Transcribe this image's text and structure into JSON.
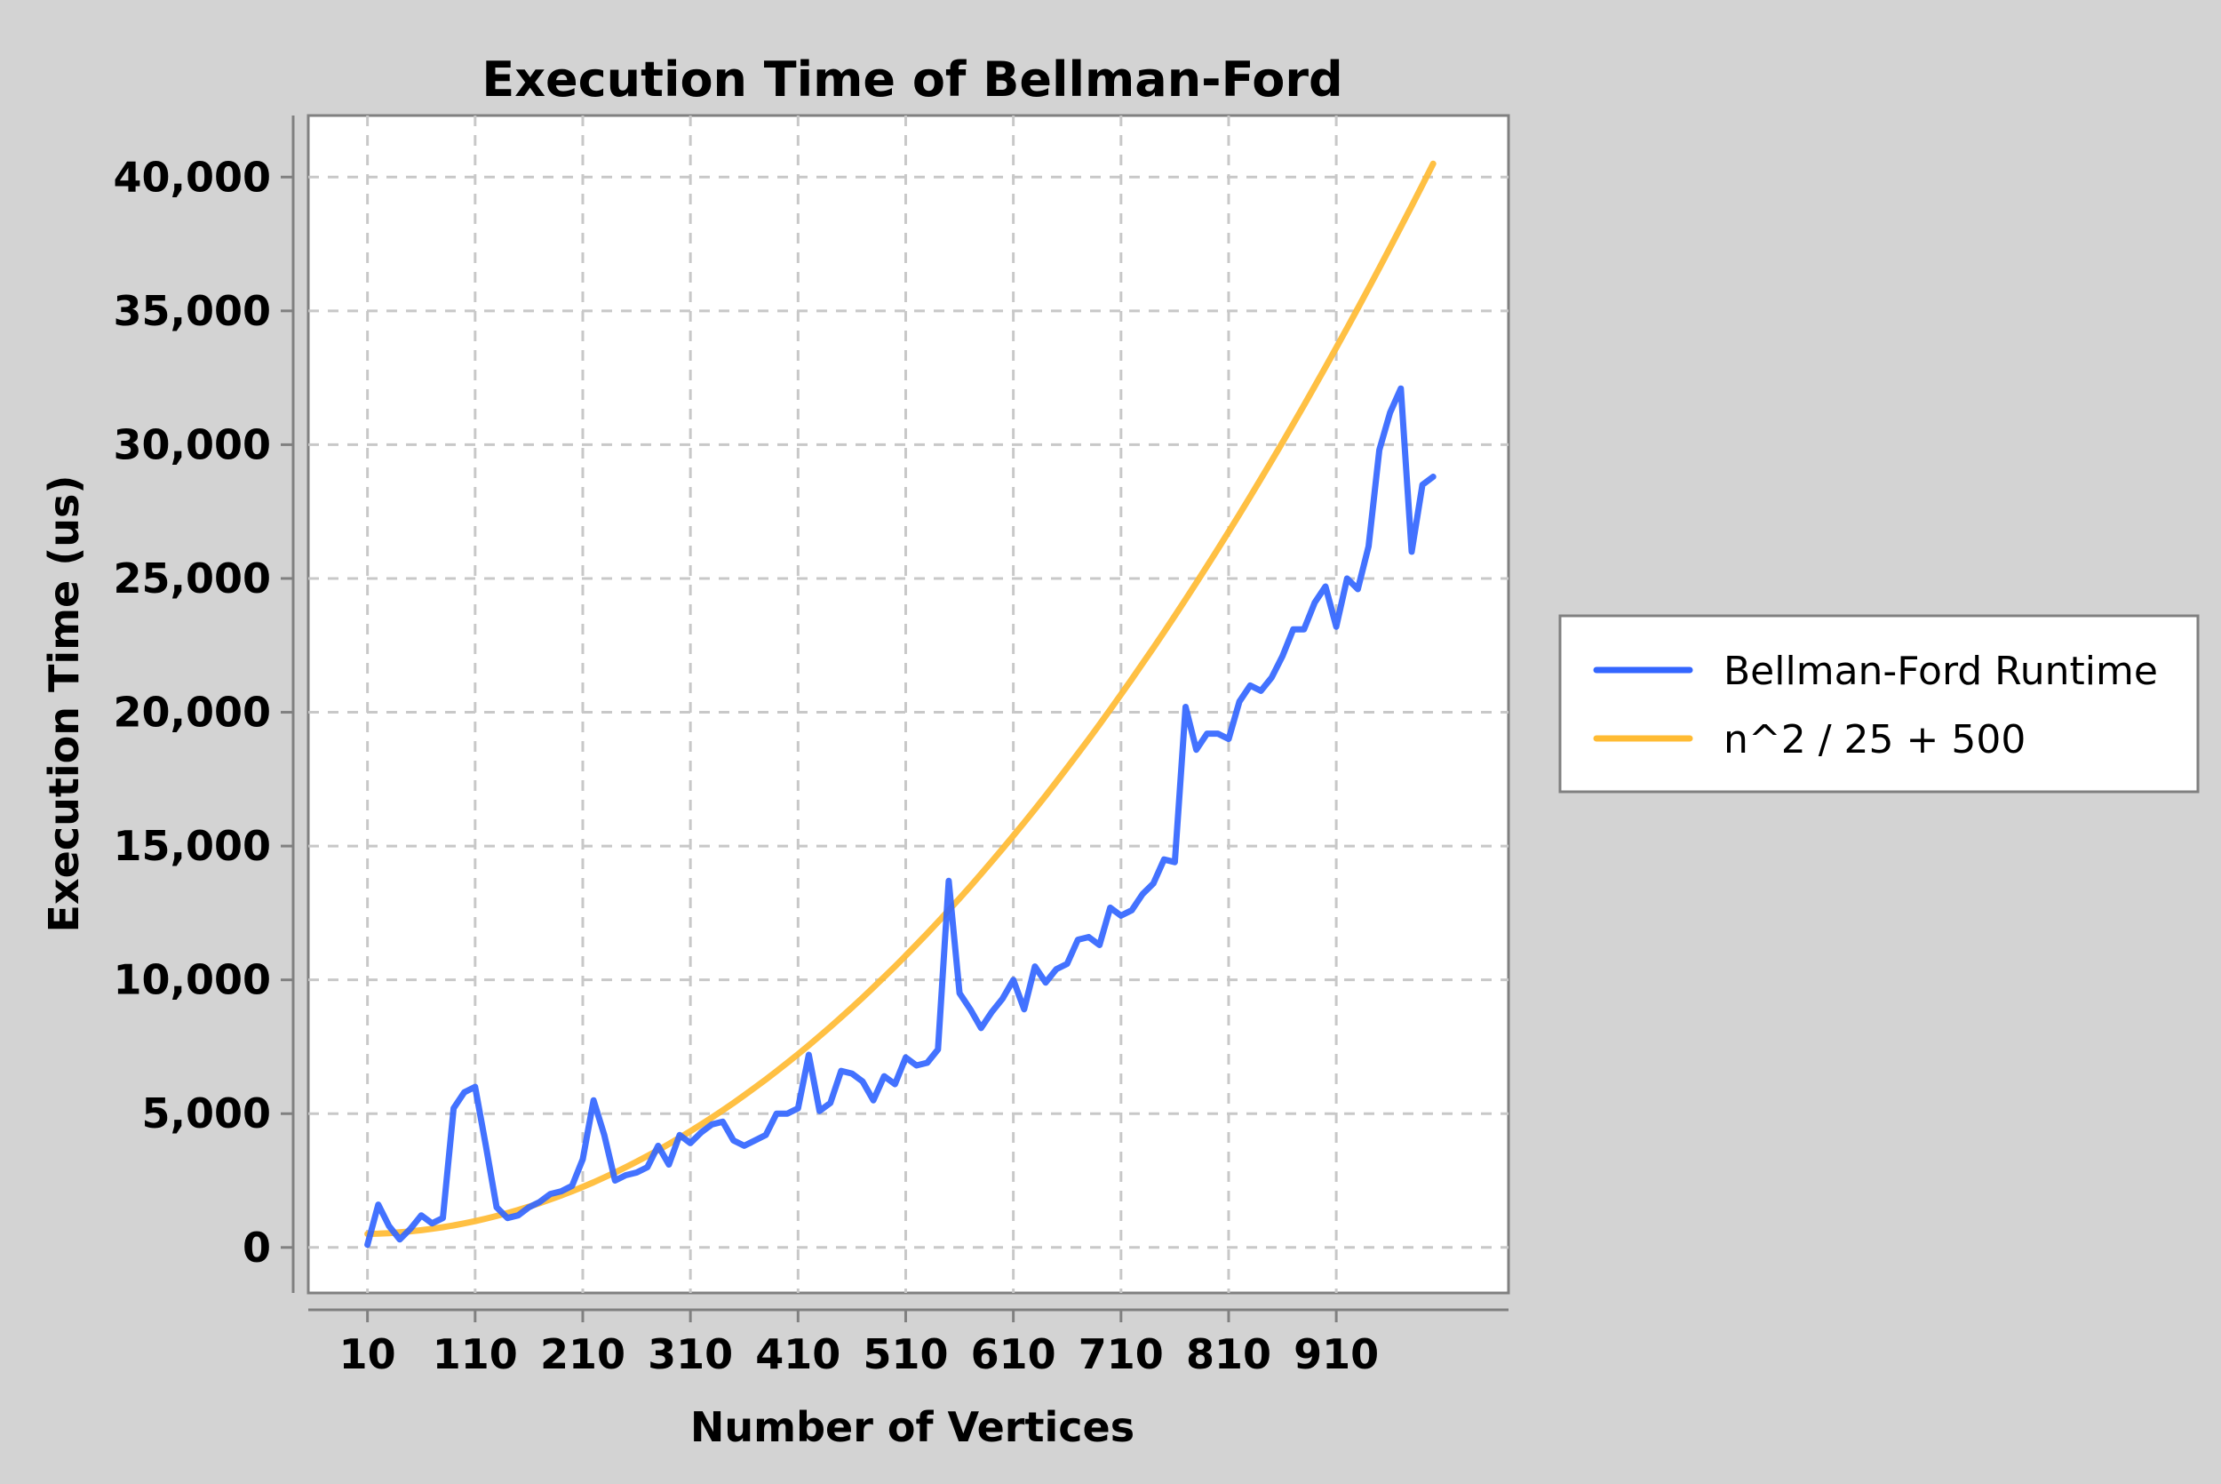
{
  "chart_data": {
    "type": "line",
    "title": "Execution Time of Bellman-Ford",
    "xlabel": "Number of Vertices",
    "ylabel": "Execution Time (us)",
    "xlim": [
      -45,
      1070
    ],
    "ylim": [
      -1700,
      42300
    ],
    "x_ticks": [
      10,
      110,
      210,
      310,
      410,
      510,
      610,
      710,
      810,
      910
    ],
    "x_tick_labels": [
      "10",
      "110",
      "210",
      "310",
      "410",
      "510",
      "610",
      "710",
      "810",
      "910"
    ],
    "y_ticks": [
      0,
      5000,
      10000,
      15000,
      20000,
      25000,
      30000,
      35000,
      40000
    ],
    "y_tick_labels": [
      "0",
      "5,000",
      "10,000",
      "15,000",
      "20,000",
      "25,000",
      "30,000",
      "35,000",
      "40,000"
    ],
    "grid": true,
    "legend_position": "right",
    "x": [
      10,
      20,
      30,
      40,
      50,
      60,
      70,
      80,
      90,
      100,
      110,
      120,
      130,
      140,
      150,
      160,
      170,
      180,
      190,
      200,
      210,
      220,
      230,
      240,
      250,
      260,
      270,
      280,
      290,
      300,
      310,
      320,
      330,
      340,
      350,
      360,
      370,
      380,
      390,
      400,
      410,
      420,
      430,
      440,
      450,
      460,
      470,
      480,
      490,
      500,
      510,
      520,
      530,
      540,
      550,
      560,
      570,
      580,
      590,
      600,
      610,
      620,
      630,
      640,
      650,
      660,
      670,
      680,
      690,
      700,
      710,
      720,
      730,
      740,
      750,
      760,
      770,
      780,
      790,
      800,
      810,
      820,
      830,
      840,
      850,
      860,
      870,
      880,
      890,
      900,
      910,
      920,
      930,
      940,
      950,
      960,
      970,
      980,
      990,
      1000
    ],
    "series": [
      {
        "name": "Bellman-Ford Runtime",
        "color": "#3366ff",
        "values": [
          100,
          1600,
          800,
          300,
          700,
          1200,
          900,
          1100,
          5200,
          5800,
          6000,
          3800,
          1500,
          1100,
          1200,
          1500,
          1700,
          2000,
          2100,
          2300,
          3300,
          5500,
          4200,
          2500,
          2700,
          2800,
          3000,
          3800,
          3100,
          4200,
          3900,
          4300,
          4600,
          4700,
          4000,
          3800,
          4000,
          4200,
          5000,
          5000,
          5200,
          7200,
          5100,
          5400,
          6600,
          6500,
          6200,
          5500,
          6400,
          6100,
          7100,
          6800,
          6900,
          7400,
          13700,
          9500,
          8900,
          8200,
          8800,
          9300,
          10000,
          8900,
          10500,
          9900,
          10400,
          10600,
          11500,
          11600,
          11300,
          12700,
          12400,
          12600,
          13200,
          13600,
          14500,
          14400,
          20200,
          18600,
          19200,
          19200,
          19000,
          20400,
          21000,
          20800,
          21300,
          22100,
          23100,
          23100,
          24100,
          24700,
          23200,
          25000,
          24600,
          26200,
          29800,
          31200,
          32100,
          26000,
          28500,
          28800
        ]
      },
      {
        "name": "n^2 / 25 + 500",
        "color": "#ffbb33",
        "values": [
          504,
          516,
          536,
          564,
          600,
          644,
          696,
          756,
          824,
          900,
          984,
          1076,
          1176,
          1284,
          1400,
          1524,
          1656,
          1796,
          1944,
          2100,
          2264,
          2436,
          2616,
          2804,
          3000,
          3204,
          3416,
          3636,
          3864,
          4100,
          4344,
          4596,
          4856,
          5124,
          5400,
          5684,
          5976,
          6276,
          6584,
          6900,
          7224,
          7556,
          7896,
          8244,
          8600,
          8964,
          9336,
          9716,
          10104,
          10500,
          10904,
          11316,
          11736,
          12164,
          12600,
          13044,
          13496,
          13956,
          14424,
          14900,
          15384,
          15876,
          16376,
          16884,
          17400,
          17924,
          18456,
          18996,
          19544,
          20100,
          20664,
          21236,
          21816,
          22404,
          23000,
          23604,
          24216,
          24836,
          25464,
          26100,
          26744,
          27396,
          28056,
          28724,
          29400,
          30084,
          30776,
          31476,
          32184,
          32900,
          33624,
          34356,
          35096,
          35844,
          36600,
          37364,
          38136,
          38916,
          39704,
          40500
        ]
      }
    ]
  }
}
